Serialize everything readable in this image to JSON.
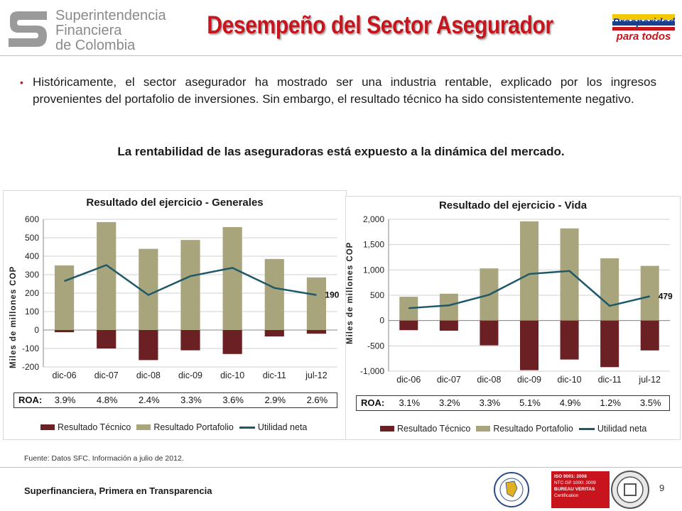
{
  "header": {
    "logo_left_lines": [
      "Superintendencia",
      "Financiera",
      "de Colombia"
    ],
    "title": "Desempeño del Sector Asegurador",
    "logo_right_lines": [
      "Prosperidad",
      "para todos"
    ]
  },
  "body": {
    "paragraph": "Históricamente, el sector asegurador ha mostrado ser una industria rentable, explicado por los ingresos provenientes del portafolio de inversiones. Sin embargo, el resultado técnico ha sido consistentemente negativo.",
    "highlight": "La rentabilidad de las aseguradoras está expuesto a la dinámica del mercado."
  },
  "colors": {
    "tecnico": "#6b2024",
    "portafolio": "#a8a47c",
    "utilidad": "#1f5868",
    "title_red": "#c8141c"
  },
  "chart_data": [
    {
      "type": "bar",
      "title": "Resultado del ejercicio - Generales",
      "ylabel": "Miles de millones COP",
      "ylim": [
        -200,
        600
      ],
      "yticks": [
        -200,
        -100,
        0,
        100,
        200,
        300,
        400,
        500,
        600
      ],
      "ytick_labels": [
        "-200",
        "-100",
        "0",
        "100",
        "200",
        "300",
        "400",
        "500",
        "600"
      ],
      "categories": [
        "dic-06",
        "dic-07",
        "dic-08",
        "dic-09",
        "dic-10",
        "dic-11",
        "jul-12"
      ],
      "series": [
        {
          "name": "Resultado Técnico",
          "kind": "bar",
          "values": [
            -12,
            -100,
            -163,
            -110,
            -130,
            -35,
            -20
          ]
        },
        {
          "name": "Resultado Portafolio",
          "kind": "bar",
          "values": [
            350,
            585,
            440,
            488,
            558,
            385,
            285
          ]
        },
        {
          "name": "Utilidad neta",
          "kind": "line",
          "values": [
            265,
            352,
            190,
            292,
            337,
            228,
            190
          ]
        }
      ],
      "end_label": "190",
      "roa_label": "ROA:",
      "roa": [
        "3.9%",
        "4.8%",
        "2.4%",
        "3.3%",
        "3.6%",
        "2.9%",
        "2.6%"
      ]
    },
    {
      "type": "bar",
      "title": "Resultado del ejercicio - Vida",
      "ylabel": "Miles de millones COP",
      "ylim": [
        -1000,
        2000
      ],
      "yticks": [
        -1000,
        -500,
        0,
        500,
        1000,
        1500,
        2000
      ],
      "ytick_labels": [
        "-1,000",
        "-500",
        "0",
        "500",
        "1,000",
        "1,500",
        "2,000"
      ],
      "categories": [
        "dic-06",
        "dic-07",
        "dic-08",
        "dic-09",
        "dic-10",
        "dic-11",
        "jul-12"
      ],
      "series": [
        {
          "name": "Resultado Técnico",
          "kind": "bar",
          "values": [
            -190,
            -200,
            -490,
            -980,
            -770,
            -920,
            -590
          ]
        },
        {
          "name": "Resultado Portafolio",
          "kind": "bar",
          "values": [
            470,
            530,
            1030,
            1960,
            1820,
            1230,
            1080
          ]
        },
        {
          "name": "Utilidad neta",
          "kind": "line",
          "values": [
            245,
            300,
            510,
            920,
            980,
            290,
            479
          ]
        }
      ],
      "end_label": "479",
      "roa_label": "ROA:",
      "roa": [
        "3.1%",
        "3.2%",
        "3.3%",
        "5.1%",
        "4.9%",
        "1.2%",
        "3.5%"
      ]
    }
  ],
  "footer": {
    "source": "Fuente: Datos SFC. Información a julio de 2012.",
    "slogan": "Superfinanciera, Primera en Transparencia",
    "page_number": "9",
    "cert_lines": [
      "ISO 9001: 2008",
      "NTC GP 1000: 2009",
      "BUREAU VERITAS",
      "Certification"
    ]
  }
}
